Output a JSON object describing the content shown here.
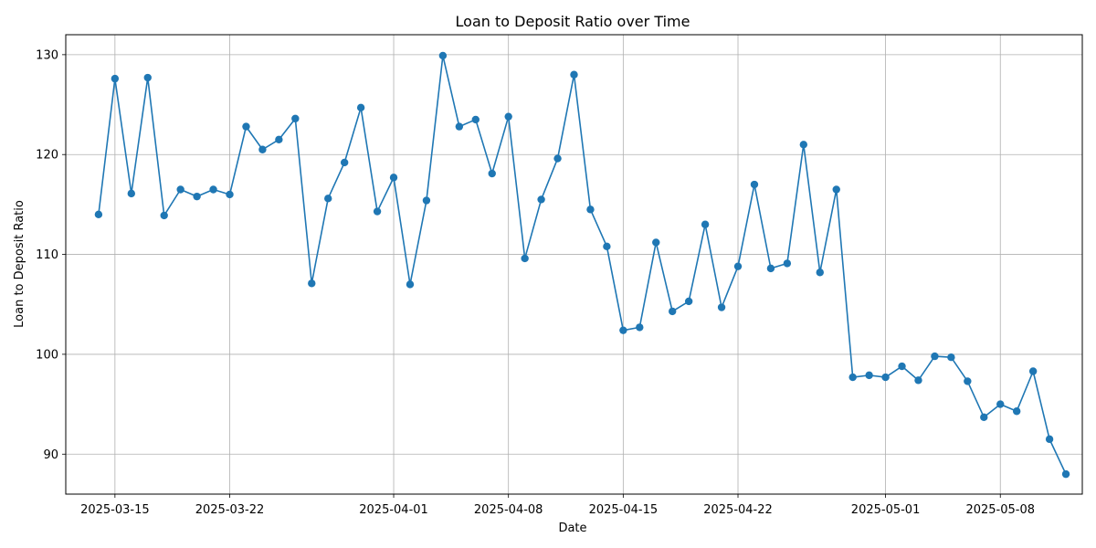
{
  "chart_data": {
    "type": "line",
    "title": "Loan to Deposit Ratio over Time",
    "xlabel": "Date",
    "ylabel": "Loan to Deposit Ratio",
    "xlim": [
      "2025-03-12",
      "2025-05-13"
    ],
    "ylim": [
      86,
      132
    ],
    "x_ticks": [
      "2025-03-15",
      "2025-03-22",
      "2025-04-01",
      "2025-04-08",
      "2025-04-15",
      "2025-04-22",
      "2025-05-01",
      "2025-05-08"
    ],
    "y_ticks": [
      90,
      100,
      110,
      120,
      130
    ],
    "grid": true,
    "marker": "circle",
    "color": "#1f77b4",
    "series": [
      {
        "x": [
          "2025-03-14",
          "2025-03-15",
          "2025-03-16",
          "2025-03-17",
          "2025-03-18",
          "2025-03-19",
          "2025-03-20",
          "2025-03-21",
          "2025-03-22",
          "2025-03-23",
          "2025-03-24",
          "2025-03-25",
          "2025-03-26",
          "2025-03-27",
          "2025-03-28",
          "2025-03-29",
          "2025-03-30",
          "2025-03-31",
          "2025-04-01",
          "2025-04-02",
          "2025-04-03",
          "2025-04-04",
          "2025-04-05",
          "2025-04-06",
          "2025-04-07",
          "2025-04-08",
          "2025-04-09",
          "2025-04-10",
          "2025-04-11",
          "2025-04-12",
          "2025-04-13",
          "2025-04-14",
          "2025-04-15",
          "2025-04-16",
          "2025-04-17",
          "2025-04-18",
          "2025-04-19",
          "2025-04-20",
          "2025-04-21",
          "2025-04-22",
          "2025-04-23",
          "2025-04-24",
          "2025-04-25",
          "2025-04-26",
          "2025-04-27",
          "2025-04-28",
          "2025-04-29",
          "2025-04-30",
          "2025-05-01",
          "2025-05-02",
          "2025-05-03",
          "2025-05-04",
          "2025-05-05",
          "2025-05-06",
          "2025-05-07",
          "2025-05-08",
          "2025-05-09",
          "2025-05-10",
          "2025-05-11",
          "2025-05-12"
        ],
        "values": [
          114.0,
          127.6,
          116.1,
          127.7,
          113.9,
          116.5,
          115.8,
          116.5,
          116.0,
          122.8,
          120.5,
          121.5,
          123.6,
          107.1,
          115.6,
          119.2,
          124.7,
          114.3,
          117.7,
          107.0,
          115.4,
          129.9,
          122.8,
          123.5,
          118.1,
          123.8,
          109.6,
          115.5,
          119.6,
          128.0,
          114.5,
          110.8,
          102.4,
          102.7,
          111.2,
          104.3,
          105.3,
          113.0,
          104.7,
          108.8,
          117.0,
          108.6,
          109.1,
          121.0,
          108.2,
          116.5,
          97.7,
          97.9,
          97.7,
          98.8,
          97.4,
          99.8,
          99.7,
          97.3,
          93.7,
          95.0,
          94.3,
          98.3,
          91.5,
          88.0
        ]
      }
    ]
  }
}
